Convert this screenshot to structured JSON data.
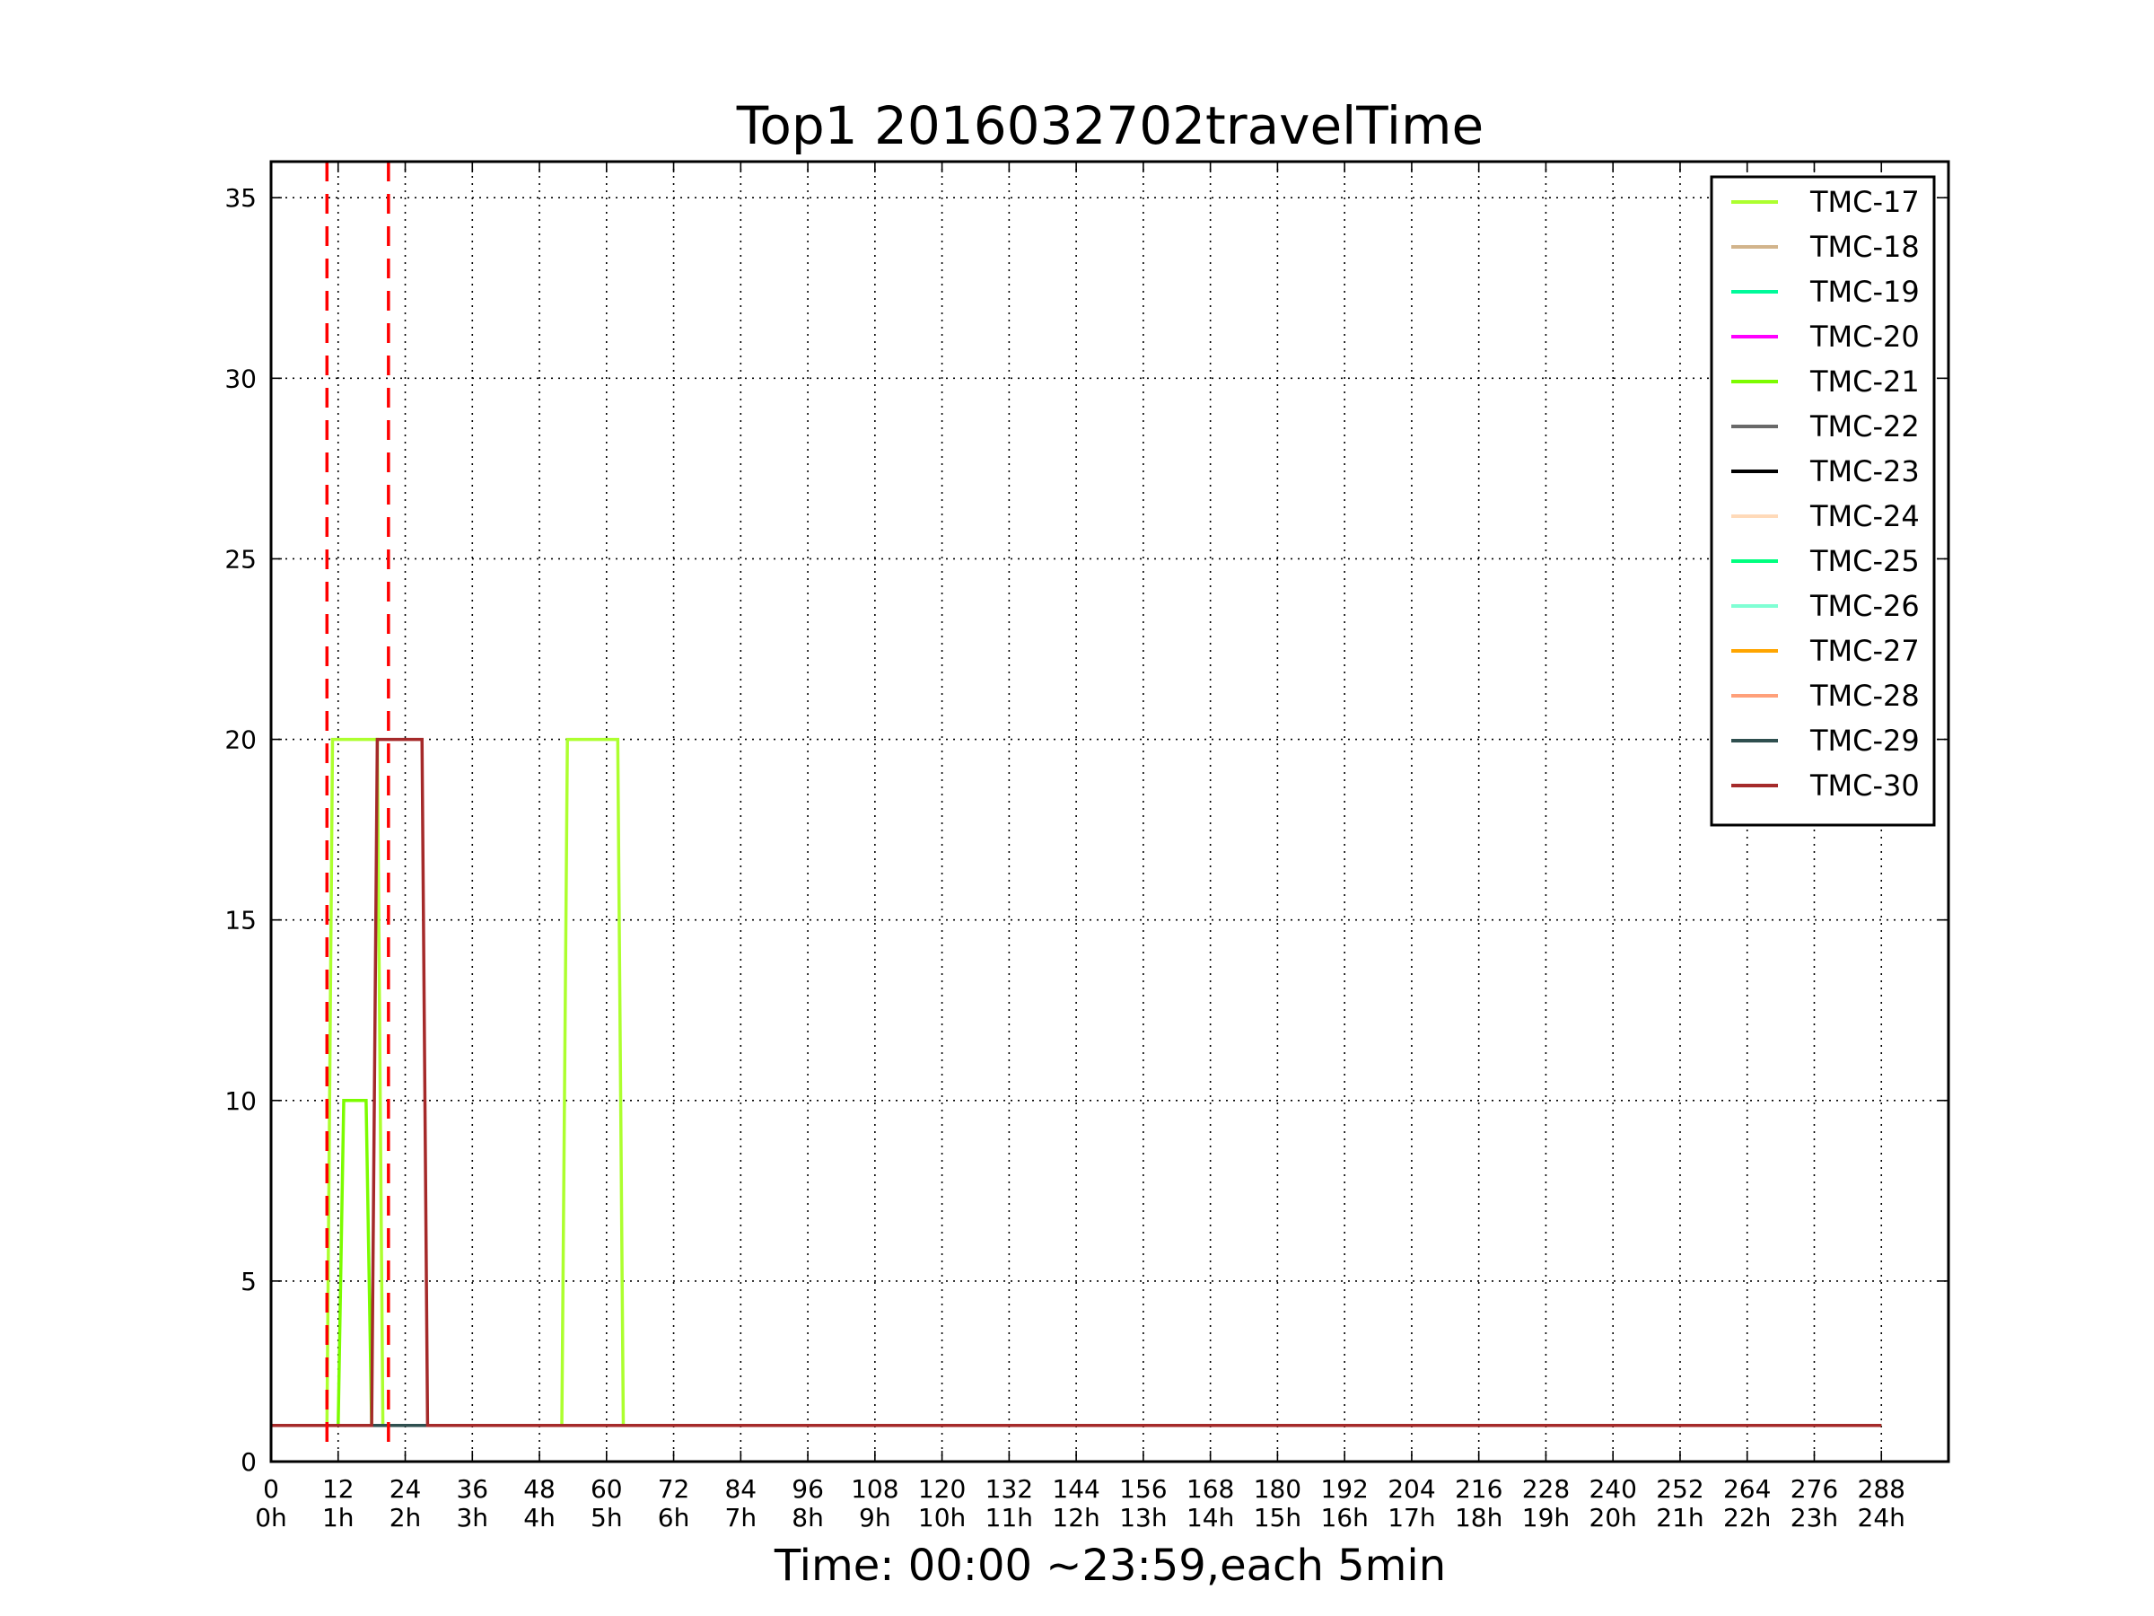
{
  "chart_data": {
    "type": "line",
    "title": "Top1 2016032702travelTime",
    "xlabel": "Time: 00:00 ~23:59,each 5min",
    "ylabel": "",
    "xlim": [
      0,
      300
    ],
    "ylim": [
      0,
      36
    ],
    "grid": true,
    "legend_position": "top-right",
    "x_ticks": [
      0,
      12,
      24,
      36,
      48,
      60,
      72,
      84,
      96,
      108,
      120,
      132,
      144,
      156,
      168,
      180,
      192,
      204,
      216,
      228,
      240,
      252,
      264,
      276,
      288
    ],
    "x_tick_hours": [
      "0h",
      "1h",
      "2h",
      "3h",
      "4h",
      "5h",
      "6h",
      "7h",
      "8h",
      "9h",
      "10h",
      "11h",
      "12h",
      "13h",
      "14h",
      "15h",
      "16h",
      "17h",
      "18h",
      "19h",
      "20h",
      "21h",
      "22h",
      "23h",
      "24h"
    ],
    "y_ticks": [
      0,
      5,
      10,
      15,
      20,
      25,
      30,
      35
    ],
    "vlines": [
      {
        "x": 10,
        "color": "#ff0000",
        "style": "dashed"
      },
      {
        "x": 21,
        "color": "#ff0000",
        "style": "dashed"
      }
    ],
    "series": [
      {
        "name": "TMC-17",
        "color": "#adff2f",
        "points": [
          [
            0,
            1
          ],
          [
            10,
            1
          ],
          [
            11,
            20
          ],
          [
            19,
            20
          ],
          [
            20,
            1
          ],
          [
            52,
            1
          ],
          [
            53,
            20
          ],
          [
            62,
            20
          ],
          [
            63,
            1
          ],
          [
            288,
            1
          ]
        ]
      },
      {
        "name": "TMC-18",
        "color": "#d2b48c",
        "points": [
          [
            0,
            1
          ],
          [
            288,
            1
          ]
        ]
      },
      {
        "name": "TMC-19",
        "color": "#00fa9a",
        "points": [
          [
            0,
            1
          ],
          [
            288,
            1
          ]
        ]
      },
      {
        "name": "TMC-20",
        "color": "#ff00ff",
        "points": [
          [
            0,
            1
          ],
          [
            288,
            1
          ]
        ]
      },
      {
        "name": "TMC-21",
        "color": "#7cfc00",
        "points": [
          [
            0,
            1
          ],
          [
            12,
            1
          ],
          [
            13,
            10
          ],
          [
            17,
            10
          ],
          [
            18,
            1
          ],
          [
            288,
            1
          ]
        ]
      },
      {
        "name": "TMC-22",
        "color": "#696969",
        "points": [
          [
            0,
            1
          ],
          [
            288,
            1
          ]
        ]
      },
      {
        "name": "TMC-23",
        "color": "#000000",
        "points": [
          [
            0,
            1
          ],
          [
            288,
            1
          ]
        ]
      },
      {
        "name": "TMC-24",
        "color": "#ffdab9",
        "points": [
          [
            0,
            1
          ],
          [
            288,
            1
          ]
        ]
      },
      {
        "name": "TMC-25",
        "color": "#00ff7f",
        "points": [
          [
            0,
            1
          ],
          [
            288,
            1
          ]
        ]
      },
      {
        "name": "TMC-26",
        "color": "#7fffd4",
        "points": [
          [
            0,
            1
          ],
          [
            288,
            1
          ]
        ]
      },
      {
        "name": "TMC-27",
        "color": "#ffa500",
        "points": [
          [
            0,
            1
          ],
          [
            288,
            1
          ]
        ]
      },
      {
        "name": "TMC-28",
        "color": "#ffa07a",
        "points": [
          [
            0,
            1
          ],
          [
            288,
            1
          ]
        ]
      },
      {
        "name": "TMC-29",
        "color": "#2f4f4f",
        "points": [
          [
            0,
            1
          ],
          [
            288,
            1
          ]
        ]
      },
      {
        "name": "TMC-30",
        "color": "#a52a2a",
        "points": [
          [
            0,
            1
          ],
          [
            18,
            1
          ],
          [
            19,
            20
          ],
          [
            27,
            20
          ],
          [
            28,
            1
          ],
          [
            288,
            1
          ]
        ]
      }
    ]
  }
}
